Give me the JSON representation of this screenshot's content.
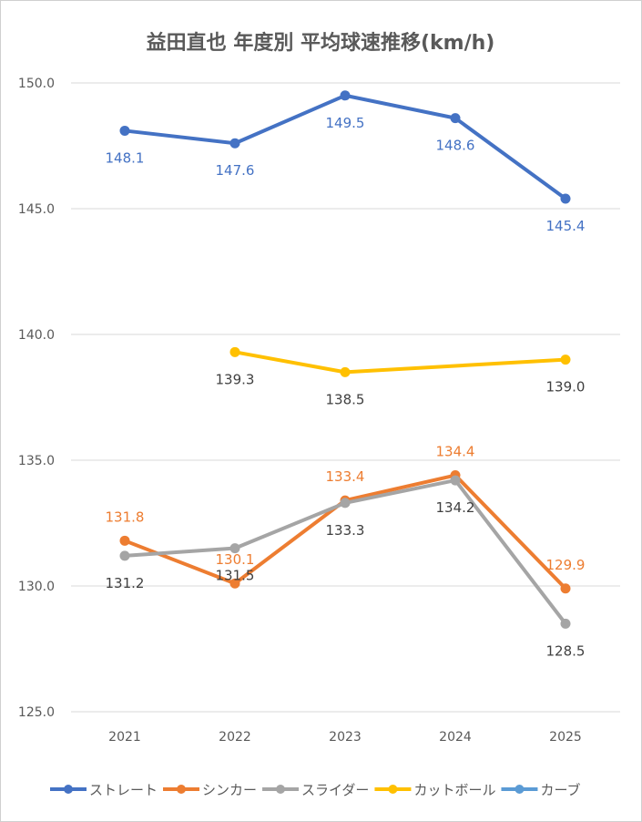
{
  "chart_data": {
    "type": "line",
    "title": "益田直也 年度別 平均球速推移(km/h)",
    "categories": [
      "2021",
      "2022",
      "2023",
      "2024",
      "2025"
    ],
    "ylim": [
      125,
      150
    ],
    "yticks": [
      "125.0",
      "130.0",
      "135.0",
      "140.0",
      "145.0",
      "150.0"
    ],
    "grid": true,
    "legend_position": "bottom",
    "series": [
      {
        "name": "ストレート",
        "color": "#4472C4",
        "label_color": "#4472C4",
        "label_pos": "below",
        "values": [
          148.1,
          147.6,
          149.5,
          148.6,
          145.4
        ]
      },
      {
        "name": "シンカー",
        "color": "#ED7D31",
        "label_color": "#ED7D31",
        "label_pos": "above",
        "values": [
          131.8,
          130.1,
          133.4,
          134.4,
          129.9
        ]
      },
      {
        "name": "スライダー",
        "color": "#A5A5A5",
        "label_color": "#404040",
        "label_pos": "below",
        "values": [
          131.2,
          131.5,
          133.3,
          134.2,
          128.5
        ]
      },
      {
        "name": "カットボール",
        "color": "#FFC000",
        "label_color": "#404040",
        "label_pos": "below",
        "values": [
          null,
          139.3,
          138.5,
          null,
          139.0
        ]
      },
      {
        "name": "カーブ",
        "color": "#5B9BD5",
        "label_color": "#404040",
        "label_pos": "below",
        "values": [
          null,
          null,
          null,
          null,
          null
        ]
      }
    ]
  }
}
